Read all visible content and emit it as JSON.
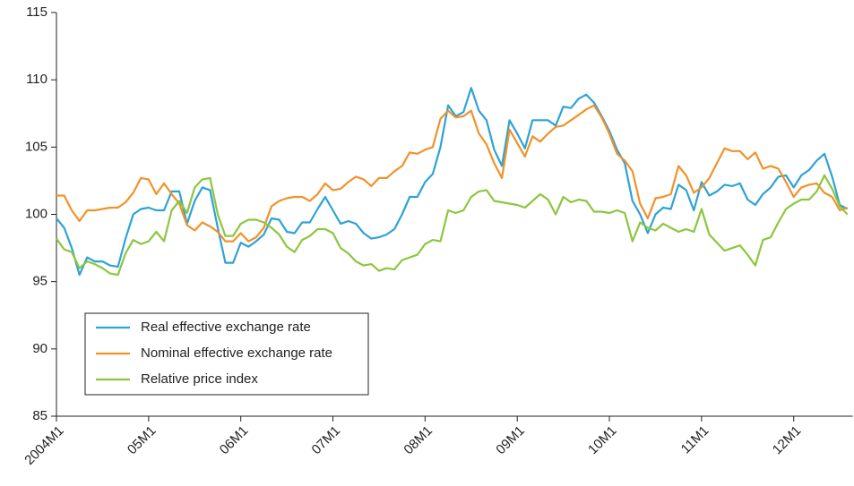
{
  "chart_data": {
    "type": "line",
    "categories": [
      "2004M1",
      null,
      null,
      null,
      null,
      null,
      null,
      null,
      null,
      null,
      null,
      null,
      "05M1",
      null,
      null,
      null,
      null,
      null,
      null,
      null,
      null,
      null,
      null,
      null,
      "06M1",
      null,
      null,
      null,
      null,
      null,
      null,
      null,
      null,
      null,
      null,
      null,
      "07M1",
      null,
      null,
      null,
      null,
      null,
      null,
      null,
      null,
      null,
      null,
      null,
      "08M1",
      null,
      null,
      null,
      null,
      null,
      null,
      null,
      null,
      null,
      null,
      null,
      "09M1",
      null,
      null,
      null,
      null,
      null,
      null,
      null,
      null,
      null,
      null,
      null,
      "10M1",
      null,
      null,
      null,
      null,
      null,
      null,
      null,
      null,
      null,
      null,
      null,
      "11M1",
      null,
      null,
      null,
      null,
      null,
      null,
      null,
      null,
      null,
      null,
      null,
      "12M1",
      null,
      null,
      null,
      null,
      null,
      null,
      null
    ],
    "series": [
      {
        "name": "Real effective exchange rate",
        "color": "#2ea3d5",
        "values": [
          99.7,
          99.0,
          97.5,
          95.5,
          96.8,
          96.5,
          96.5,
          96.2,
          96.1,
          98.2,
          100.0,
          100.4,
          100.5,
          100.3,
          100.3,
          101.7,
          101.7,
          99.3,
          101.0,
          102.0,
          101.8,
          99.0,
          96.4,
          96.4,
          97.9,
          97.6,
          98.0,
          98.5,
          99.7,
          99.6,
          98.7,
          98.6,
          99.4,
          99.4,
          100.4,
          101.3,
          100.3,
          99.3,
          99.5,
          99.3,
          98.6,
          98.2,
          98.3,
          98.5,
          98.9,
          100.0,
          101.3,
          101.3,
          102.4,
          103.0,
          105.0,
          108.1,
          107.3,
          107.6,
          109.4,
          107.7,
          107.0,
          104.8,
          103.6,
          107.0,
          106.0,
          104.9,
          107.0,
          107.0,
          107.0,
          106.6,
          108.0,
          107.9,
          108.6,
          108.9,
          108.3,
          107.3,
          106.2,
          104.8,
          103.8,
          101.0,
          100.0,
          98.6,
          100.0,
          100.5,
          100.4,
          102.2,
          101.8,
          100.3,
          102.4,
          101.4,
          101.7,
          102.2,
          102.1,
          102.3,
          101.1,
          100.7,
          101.5,
          102.0,
          102.8,
          102.9,
          102.0,
          102.9,
          103.3,
          104.0,
          104.5,
          102.8,
          100.7,
          100.4
        ]
      },
      {
        "name": "Nominal effective exchange rate",
        "color": "#f0922b",
        "values": [
          101.4,
          101.4,
          100.3,
          99.5,
          100.3,
          100.3,
          100.4,
          100.5,
          100.5,
          100.9,
          101.6,
          102.7,
          102.6,
          101.5,
          102.3,
          101.5,
          100.8,
          99.2,
          98.8,
          99.4,
          99.1,
          98.7,
          98.0,
          98.0,
          98.6,
          98.0,
          98.3,
          99.0,
          100.6,
          101.0,
          101.2,
          101.3,
          101.3,
          101.0,
          101.5,
          102.3,
          101.8,
          101.9,
          102.4,
          102.8,
          102.6,
          102.1,
          102.7,
          102.7,
          103.2,
          103.6,
          104.6,
          104.5,
          104.8,
          105.0,
          107.1,
          107.7,
          107.2,
          107.3,
          107.7,
          106.0,
          105.2,
          103.8,
          102.7,
          106.3,
          105.3,
          104.3,
          105.8,
          105.4,
          106.0,
          106.5,
          106.6,
          107.0,
          107.4,
          107.8,
          108.1,
          107.2,
          106.0,
          104.5,
          104.0,
          103.2,
          100.8,
          99.7,
          101.2,
          101.3,
          101.5,
          103.6,
          102.9,
          101.6,
          102.0,
          102.7,
          103.8,
          104.9,
          104.7,
          104.7,
          104.1,
          104.6,
          103.4,
          103.6,
          103.4,
          102.4,
          101.3,
          102.0,
          102.2,
          102.3,
          101.6,
          101.3,
          100.3,
          100.5
        ]
      },
      {
        "name": "Relative price index",
        "color": "#8cc63f",
        "values": [
          98.2,
          97.4,
          97.2,
          96.0,
          96.5,
          96.3,
          96.0,
          95.6,
          95.5,
          97.1,
          98.1,
          97.8,
          98.0,
          98.7,
          98.0,
          100.3,
          101.0,
          100.1,
          102.0,
          102.6,
          102.7,
          100.0,
          98.4,
          98.4,
          99.3,
          99.6,
          99.6,
          99.4,
          99.0,
          98.5,
          97.6,
          97.2,
          98.1,
          98.4,
          98.9,
          98.9,
          98.6,
          97.5,
          97.1,
          96.5,
          96.2,
          96.3,
          95.8,
          96.0,
          95.9,
          96.6,
          96.8,
          97.0,
          97.8,
          98.1,
          98.0,
          100.3,
          100.1,
          100.3,
          101.3,
          101.7,
          101.8,
          101.0,
          100.9,
          100.8,
          100.7,
          100.5,
          101.0,
          101.5,
          101.1,
          100.0,
          101.3,
          100.9,
          101.1,
          101.0,
          100.2,
          100.2,
          100.1,
          100.3,
          100.1,
          98.0,
          99.4,
          99.0,
          98.8,
          99.3,
          99.0,
          98.7,
          98.9,
          98.7,
          100.4,
          98.5,
          97.9,
          97.3,
          97.5,
          97.7,
          97.0,
          96.2,
          98.1,
          98.3,
          99.4,
          100.4,
          100.8,
          101.1,
          101.1,
          101.7,
          102.9,
          101.9,
          100.6,
          100.0
        ]
      }
    ],
    "ylim": [
      85,
      115
    ],
    "yticks": [
      85,
      90,
      95,
      100,
      105,
      110,
      115
    ],
    "legend": "lower left"
  }
}
